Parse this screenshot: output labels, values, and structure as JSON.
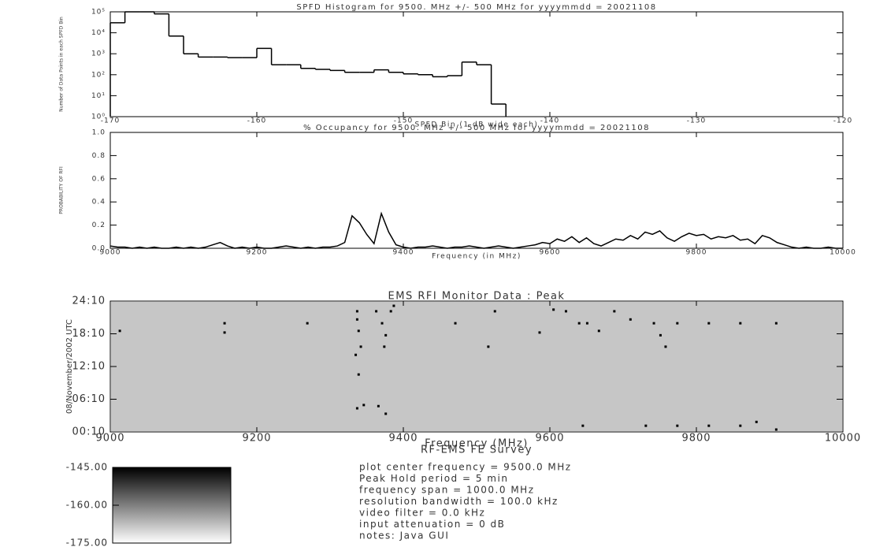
{
  "chart_data": [
    {
      "type": "histogram",
      "title": "SPFD Histogram for 9500. MHz +/- 500 MHz for yyyymmdd = 20021108",
      "x_label": "SPFD Bin (1 dB wide each)",
      "y_label": "Number of Data Points in each SPFD Bin",
      "bins": [
        -170,
        -169,
        -168,
        -167,
        -166,
        -165,
        -164,
        -163,
        -162,
        -161,
        -160,
        -159,
        -158,
        -157,
        -156,
        -155,
        -154,
        -153,
        -152,
        -151,
        -150,
        -149,
        -148,
        -147,
        -146,
        -145,
        -144,
        -143
      ],
      "values": [
        30000,
        100000,
        100000,
        80000,
        7000,
        1000,
        700,
        700,
        650,
        650,
        1800,
        300,
        300,
        200,
        180,
        160,
        130,
        130,
        170,
        130,
        110,
        100,
        80,
        90,
        400,
        300,
        4
      ],
      "color": "#000000",
      "log_y": true,
      "xlim": [
        -170,
        -120
      ],
      "xticks": [
        -170,
        -160,
        -150,
        -140,
        -130,
        -120
      ],
      "ylim": [
        1,
        100000
      ],
      "yticks": [
        {
          "value": 1,
          "label": "10⁰"
        },
        {
          "value": 10,
          "label": "10¹"
        },
        {
          "value": 100,
          "label": "10²"
        },
        {
          "value": 1000,
          "label": "10³"
        },
        {
          "value": 10000,
          "label": "10⁴"
        },
        {
          "value": 100000,
          "label": "10⁵"
        }
      ]
    },
    {
      "type": "line",
      "title": "% Occupancy for 9500. MHz +/- 500 MHz for yyyymmdd = 20021108",
      "x_label": "Frequency (in MHz)",
      "y_label": "PROBABILITY OF RFI",
      "x": [
        9000,
        9010,
        9020,
        9030,
        9040,
        9050,
        9060,
        9070,
        9080,
        9090,
        9100,
        9110,
        9120,
        9130,
        9140,
        9150,
        9160,
        9170,
        9180,
        9190,
        9200,
        9210,
        9220,
        9230,
        9240,
        9250,
        9260,
        9270,
        9280,
        9290,
        9300,
        9310,
        9320,
        9330,
        9340,
        9350,
        9360,
        9370,
        9380,
        9390,
        9400,
        9410,
        9420,
        9430,
        9440,
        9450,
        9460,
        9470,
        9480,
        9490,
        9500,
        9510,
        9520,
        9530,
        9540,
        9550,
        9560,
        9570,
        9580,
        9590,
        9600,
        9610,
        9620,
        9630,
        9640,
        9650,
        9660,
        9670,
        9680,
        9690,
        9700,
        9710,
        9720,
        9730,
        9740,
        9750,
        9760,
        9770,
        9780,
        9790,
        9800,
        9810,
        9820,
        9830,
        9840,
        9850,
        9860,
        9870,
        9880,
        9890,
        9900,
        9910,
        9920,
        9930,
        9940,
        9950,
        9960,
        9970,
        9980,
        9990,
        10000
      ],
      "values": [
        0.02,
        0.01,
        0.01,
        0,
        0.01,
        0,
        0.01,
        0,
        0,
        0.01,
        0,
        0.01,
        0,
        0.01,
        0.03,
        0.05,
        0.02,
        0,
        0.01,
        0,
        0.01,
        0,
        0,
        0.01,
        0.02,
        0.01,
        0,
        0.01,
        0,
        0.01,
        0.01,
        0.02,
        0.05,
        0.28,
        0.22,
        0.12,
        0.04,
        0.3,
        0.14,
        0.03,
        0.01,
        0,
        0.01,
        0.01,
        0.02,
        0.01,
        0,
        0.01,
        0.01,
        0.02,
        0.01,
        0,
        0.01,
        0.02,
        0.01,
        0,
        0.01,
        0.02,
        0.03,
        0.05,
        0.04,
        0.08,
        0.06,
        0.1,
        0.05,
        0.09,
        0.04,
        0.02,
        0.05,
        0.08,
        0.07,
        0.11,
        0.08,
        0.14,
        0.12,
        0.15,
        0.09,
        0.06,
        0.1,
        0.13,
        0.11,
        0.12,
        0.08,
        0.1,
        0.09,
        0.11,
        0.07,
        0.08,
        0.04,
        0.11,
        0.09,
        0.05,
        0.03,
        0.01,
        0,
        0.01,
        0,
        0,
        0.01,
        0,
        0
      ],
      "color": "#000000",
      "xlim": [
        9000,
        10000
      ],
      "xticks": [
        9000,
        9200,
        9400,
        9600,
        9800,
        10000
      ],
      "ylim": [
        0,
        1
      ],
      "yticks": [
        {
          "value": 0,
          "label": "0.0"
        },
        {
          "value": 0.2,
          "label": "0.2"
        },
        {
          "value": 0.4,
          "label": "0.4"
        },
        {
          "value": 0.6,
          "label": "0.6"
        },
        {
          "value": 0.8,
          "label": "0.8"
        },
        {
          "value": 1,
          "label": "1.0"
        }
      ]
    },
    {
      "type": "scatter",
      "title": "EMS RFI Monitor Data : Peak",
      "subtitle": "RF-EMS FE Survey",
      "x_label": "Frequency (MHz)",
      "y_label": "08/November/2002 UTC",
      "x": [
        9337,
        9337,
        9339,
        9342,
        9335,
        9339,
        9337,
        9346,
        9366,
        9376,
        9363,
        9371,
        9376,
        9374,
        9383,
        9387,
        9156,
        9156,
        9013,
        9269,
        9471,
        9525,
        9516,
        9605,
        9622,
        9640,
        9651,
        9667,
        9688,
        9710,
        9742,
        9751,
        9758,
        9774,
        9817,
        9860,
        9909,
        9731,
        9774,
        9817,
        9860,
        9882,
        9909,
        9645,
        9586
      ],
      "y": [
        22.3,
        20.8,
        18.7,
        15.8,
        14.3,
        10.7,
        4.5,
        5.1,
        4.9,
        3.5,
        22.3,
        20.1,
        17.9,
        15.8,
        22.3,
        23.3,
        20.1,
        18.4,
        18.7,
        20.1,
        20.1,
        22.3,
        15.8,
        22.6,
        22.3,
        20.1,
        20.1,
        18.7,
        22.3,
        20.8,
        20.1,
        17.9,
        15.8,
        20.1,
        20.1,
        20.1,
        20.1,
        1.3,
        1.3,
        1.3,
        1.3,
        2.0,
        0.6,
        1.3,
        18.4
      ],
      "color": "#000000",
      "background": "#c6c6c6",
      "xlim": [
        9000,
        10000
      ],
      "xticks": [
        9000,
        9200,
        9400,
        9600,
        9800,
        10000
      ],
      "ylim": [
        0.1667,
        24.1667
      ],
      "yticks": [
        {
          "value": 0.1667,
          "label": "00:10"
        },
        {
          "value": 6.1667,
          "label": "06:10"
        },
        {
          "value": 12.1667,
          "label": "12:10"
        },
        {
          "value": 18.1667,
          "label": "18:10"
        },
        {
          "value": 24.1667,
          "label": "24:10"
        }
      ]
    },
    {
      "type": "colorbar",
      "colors": [
        "#ffffff",
        "#000000"
      ],
      "ylim": [
        -175,
        -145
      ],
      "yticks": [
        {
          "value": -145,
          "label": "-145.00"
        },
        {
          "value": -160,
          "label": "-160.00"
        },
        {
          "value": -175,
          "label": "-175.00"
        }
      ]
    }
  ],
  "info": {
    "lines": [
      "plot center frequency  =   9500.0 MHz",
      "Peak Hold period  =   5 min",
      "frequency span  =  1000.0 MHz",
      "resolution bandwidth  =   100.0 kHz",
      "video filter  =   0.0 kHz",
      "input attenuation  =   0 dB",
      "notes: Java GUI"
    ]
  }
}
